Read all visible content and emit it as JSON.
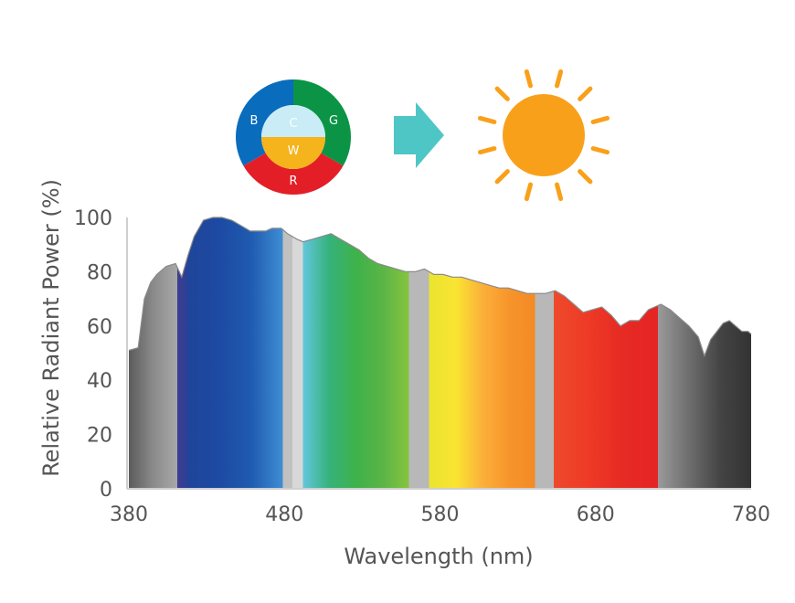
{
  "icons": {
    "color_wheel": {
      "segments": [
        {
          "label": "B",
          "color": "#0a6cbd"
        },
        {
          "label": "G",
          "color": "#0b9446"
        },
        {
          "label": "R",
          "color": "#e41e26"
        }
      ],
      "center_top": {
        "label": "C",
        "color": "#c9ecf7"
      },
      "center_bottom": {
        "label": "W",
        "color": "#f5b31c"
      }
    },
    "arrow": {
      "name": "right-arrow-icon",
      "color": "#4fc6c6"
    },
    "sun": {
      "name": "sun-icon",
      "color": "#f9a01b"
    }
  },
  "chart_data": {
    "type": "area",
    "title": "",
    "xlabel": "Wavelength (nm)",
    "ylabel": "Relative Radiant Power (%)",
    "xlim": [
      380,
      780
    ],
    "ylim": [
      0,
      100
    ],
    "xticks": [
      380,
      480,
      580,
      680,
      780
    ],
    "yticks": [
      0,
      20,
      40,
      60,
      80,
      100
    ],
    "grid": false,
    "series": [
      {
        "x": [
          380,
          386,
          390,
          394,
          398,
          404,
          410,
          414,
          418,
          422,
          428,
          434,
          440,
          446,
          452,
          458,
          462,
          468,
          472,
          478,
          482,
          488,
          492,
          498,
          504,
          510,
          516,
          522,
          528,
          534,
          540,
          546,
          552,
          558,
          564,
          570,
          576,
          582,
          588,
          594,
          600,
          606,
          612,
          618,
          624,
          630,
          636,
          642,
          648,
          654,
          660,
          666,
          672,
          678,
          684,
          690,
          696,
          702,
          708,
          714,
          718,
          722,
          728,
          734,
          740,
          746,
          750,
          754,
          758,
          762,
          766,
          770,
          774,
          778,
          780
        ],
        "y": [
          51,
          52,
          70,
          76,
          79,
          82,
          83,
          78,
          86,
          93,
          99,
          100,
          100,
          99,
          97,
          95,
          95,
          95,
          96,
          96,
          94,
          92,
          91,
          92,
          93,
          94,
          92,
          90,
          88,
          85,
          83,
          82,
          81,
          80,
          80,
          81,
          79,
          79,
          78,
          78,
          77,
          76,
          75,
          74,
          74,
          73,
          72,
          72,
          72,
          73,
          71,
          68,
          65,
          66,
          67,
          64,
          60,
          62,
          62,
          66,
          67,
          68,
          66,
          63,
          60,
          56,
          49,
          55,
          58,
          61,
          62,
          60,
          58,
          58,
          57
        ]
      }
    ],
    "spectrum_bands": [
      {
        "from": 380,
        "to": 411,
        "colors": [
          "#5c5c5c",
          "#8a8a8a",
          "#a8a8a8"
        ]
      },
      {
        "from": 411,
        "to": 418,
        "colors": [
          "#3d3f8e",
          "#2b3f98"
        ]
      },
      {
        "from": 418,
        "to": 479,
        "colors": [
          "#1e459a",
          "#1d4aa3",
          "#1f5bb0",
          "#3f8ed4"
        ]
      },
      {
        "from": 479,
        "to": 485,
        "colors": [
          "#c0c0c0",
          "#c0c0c0"
        ]
      },
      {
        "from": 485,
        "to": 492,
        "colors": [
          "#d8d8d8",
          "#d8d8d8"
        ]
      },
      {
        "from": 492,
        "to": 560,
        "colors": [
          "#63c6dc",
          "#35b27a",
          "#3eb24a",
          "#5ab446",
          "#86c43f"
        ]
      },
      {
        "from": 560,
        "to": 573,
        "colors": [
          "#b8b8b8",
          "#b8b8b8"
        ]
      },
      {
        "from": 573,
        "to": 641,
        "colors": [
          "#eae430",
          "#f9e532",
          "#fbb13a",
          "#f7952c",
          "#f38a26"
        ]
      },
      {
        "from": 641,
        "to": 653,
        "colors": [
          "#b8b8b8",
          "#b8b8b8"
        ]
      },
      {
        "from": 653,
        "to": 720,
        "colors": [
          "#ee4a2b",
          "#ee3a26",
          "#e62a24",
          "#e52424"
        ]
      },
      {
        "from": 720,
        "to": 780,
        "colors": [
          "#9a9a9a",
          "#6e6e6e",
          "#444444",
          "#333333"
        ]
      }
    ]
  }
}
